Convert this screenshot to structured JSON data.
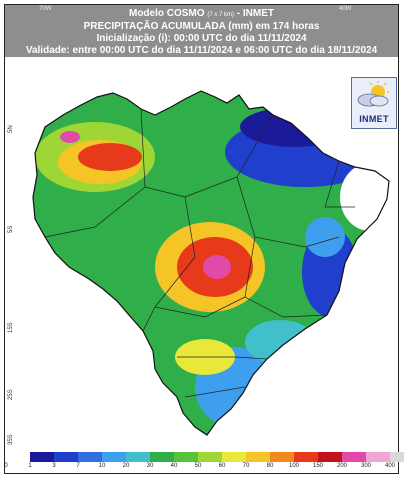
{
  "header": {
    "model_name": "Modelo COSMO",
    "model_resolution": "(7 x 7 km)",
    "model_source": "- INMET",
    "title": "PRECIPITAÇÃO ACUMULADA (mm) em 174 horas",
    "initialization": "Inicialização (i): 00:00 UTC do dia 11/11/2024",
    "validity": "Validade: entre 00:00 UTC do dia 11/11/2024 e 06:00 UTC do dia 18/11/2024"
  },
  "lon_labels": [
    "70W",
    "40W"
  ],
  "lat_labels": [
    "5N",
    "5S",
    "15S",
    "25S",
    "35S"
  ],
  "logo": {
    "text": "INMET",
    "icon": "sun-cloud-icon"
  },
  "legend": {
    "unit": "mm",
    "ticks": [
      "0",
      "1",
      "3",
      "7",
      "10",
      "20",
      "30",
      "40",
      "50",
      "60",
      "70",
      "80",
      "100",
      "150",
      "200",
      "300",
      "400"
    ],
    "colors": [
      "#ffffff",
      "#1b1b9a",
      "#1f3fcc",
      "#2f6fe0",
      "#3f9fef",
      "#41c0cc",
      "#2fae4a",
      "#58c23b",
      "#9ed636",
      "#e8e83a",
      "#f5c426",
      "#f08a1f",
      "#e63a1a",
      "#c4121a",
      "#e04aa8",
      "#f2a6d6",
      "#d9d9d9"
    ]
  }
}
